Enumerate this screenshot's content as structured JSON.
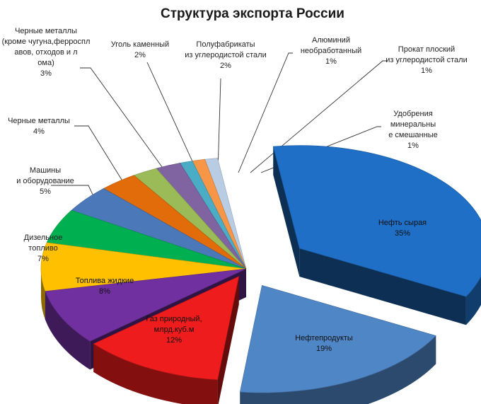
{
  "chart_data": {
    "type": "pie",
    "title": "Структура экспорта России",
    "slices": [
      {
        "label": "Нефть сырая",
        "pct": "35%",
        "value": 35,
        "color": "#1f6fc6"
      },
      {
        "label": "Нефтепродукты",
        "pct": "19%",
        "value": 19,
        "color": "#4f86c6"
      },
      {
        "label": "Газ природный, млрд.куб.м",
        "pct": "12%",
        "value": 12,
        "color": "#ee1c1c"
      },
      {
        "label": "Топлива жидкие",
        "pct": "8%",
        "value": 8,
        "color": "#7030a0"
      },
      {
        "label": "Дизельное топливо",
        "pct": "7%",
        "value": 7,
        "color": "#ffc000"
      },
      {
        "label": "Машины и оборудование",
        "pct": "5%",
        "value": 5,
        "color": "#00b050"
      },
      {
        "label": "Черные металлы",
        "pct": "4%",
        "value": 4,
        "color": "#4a78b8"
      },
      {
        "label": "Черные металлы (кроме чугуна,ферросплавов, отходов и лома)",
        "pct": "3%",
        "value": 3,
        "color": "#e26b0a"
      },
      {
        "label": "Уголь каменный",
        "pct": "2%",
        "value": 2,
        "color": "#9bbb59"
      },
      {
        "label": "Полуфабрикаты из углеродистой стали",
        "pct": "2%",
        "value": 2,
        "color": "#8064a2"
      },
      {
        "label": "Алюминий необработанный",
        "pct": "1%",
        "value": 1,
        "color": "#4bacc6"
      },
      {
        "label": "Прокат плоский из углеродистой стали",
        "pct": "1%",
        "value": 1,
        "color": "#f79646"
      },
      {
        "label": "Удобрения минеральные смешанные",
        "pct": "1%",
        "value": 1,
        "color": "#b8cce4"
      }
    ]
  }
}
